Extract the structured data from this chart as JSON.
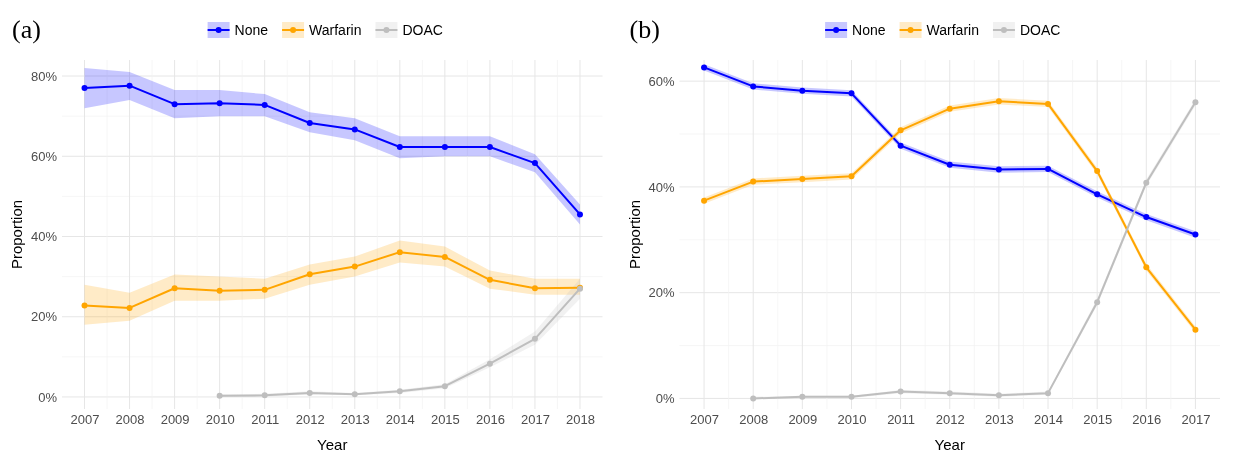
{
  "chart_data": [
    {
      "type": "line",
      "title": "(a)",
      "xlabel": "Year",
      "ylabel": "Proportion",
      "x": [
        2007,
        2008,
        2009,
        2010,
        2011,
        2012,
        2013,
        2014,
        2015,
        2016,
        2017,
        2018
      ],
      "xlim": [
        2006.5,
        2018.5
      ],
      "xticks": [
        2007,
        2008,
        2009,
        2010,
        2011,
        2012,
        2013,
        2014,
        2015,
        2016,
        2017,
        2018
      ],
      "ylim": [
        -3,
        84
      ],
      "yticks": [
        {
          "value": 0,
          "label": "0%"
        },
        {
          "value": 20,
          "label": "20%"
        },
        {
          "value": 40,
          "label": "40%"
        },
        {
          "value": 60,
          "label": "60%"
        },
        {
          "value": 80,
          "label": "80%"
        }
      ],
      "grid": true,
      "legend": "top",
      "marker": "circle",
      "line_style": "solid",
      "series": [
        {
          "name": "None",
          "color": "#0000ff",
          "values": [
            77,
            77.6,
            73,
            73.2,
            72.8,
            68.3,
            66.7,
            62.3,
            62.3,
            62.3,
            58.3,
            45.5
          ],
          "lower": [
            72,
            74,
            69.5,
            70,
            70,
            66,
            64,
            59.5,
            60,
            60,
            56,
            43
          ],
          "upper": [
            82,
            81,
            76.5,
            76.5,
            75.5,
            71,
            69.5,
            65,
            65,
            65,
            60.5,
            48
          ]
        },
        {
          "name": "Warfarin",
          "color": "#ffa500",
          "values": [
            22.8,
            22.2,
            27.1,
            26.5,
            26.7,
            30.6,
            32.5,
            36.1,
            34.9,
            29.2,
            27.1,
            27.2
          ],
          "lower": [
            18,
            19,
            24,
            24,
            24.5,
            28,
            30,
            33.5,
            32.5,
            27,
            25.5,
            25.5
          ],
          "upper": [
            28,
            26,
            30.5,
            30,
            29.5,
            33,
            35,
            39,
            37.5,
            31.5,
            29.5,
            29.5
          ]
        },
        {
          "name": "DOAC",
          "color": "#bebebe",
          "x": [
            2010,
            2011,
            2012,
            2013,
            2014,
            2015,
            2016,
            2017,
            2018
          ],
          "values": [
            0.3,
            0.4,
            1,
            0.7,
            1.4,
            2.7,
            8.3,
            14.5,
            27
          ],
          "lower": [
            0,
            0.1,
            0.6,
            0.4,
            1,
            2.2,
            7.4,
            13,
            24.5
          ],
          "upper": [
            0.6,
            0.8,
            1.4,
            1,
            1.8,
            3.2,
            9.4,
            16.3,
            29.5
          ]
        }
      ]
    },
    {
      "type": "line",
      "title": "(b)",
      "xlabel": "Year",
      "ylabel": "Proportion",
      "x": [
        2007,
        2008,
        2009,
        2010,
        2011,
        2012,
        2013,
        2014,
        2015,
        2016,
        2017
      ],
      "xlim": [
        2006.5,
        2017.5
      ],
      "xticks": [
        2007,
        2008,
        2009,
        2010,
        2011,
        2012,
        2013,
        2014,
        2015,
        2016,
        2017
      ],
      "ylim": [
        -2,
        64
      ],
      "yticks": [
        {
          "value": 0,
          "label": "0%"
        },
        {
          "value": 20,
          "label": "20%"
        },
        {
          "value": 40,
          "label": "40%"
        },
        {
          "value": 60,
          "label": "60%"
        }
      ],
      "grid": true,
      "legend": "top",
      "marker": "circle",
      "line_style": "solid",
      "series": [
        {
          "name": "None",
          "color": "#0000ff",
          "values": [
            62.6,
            59,
            58.2,
            57.7,
            47.8,
            44.2,
            43.3,
            43.4,
            38.6,
            34.3,
            31
          ],
          "lower": [
            62,
            58.4,
            57.6,
            57.1,
            47.2,
            43.6,
            42.7,
            42.8,
            38,
            33.7,
            30.4
          ],
          "upper": [
            63.2,
            59.6,
            58.8,
            58.3,
            48.4,
            44.8,
            43.9,
            44,
            39.2,
            34.9,
            31.6
          ]
        },
        {
          "name": "Warfarin",
          "color": "#ffa500",
          "values": [
            37.4,
            41,
            41.5,
            42,
            50.7,
            54.8,
            56.2,
            55.7,
            43,
            24.8,
            13
          ],
          "lower": [
            36.8,
            40.4,
            40.9,
            41.4,
            50.1,
            54.2,
            55.6,
            55.1,
            42.4,
            24.2,
            12.4
          ],
          "upper": [
            38,
            41.6,
            42.1,
            42.6,
            51.3,
            55.4,
            56.8,
            56.3,
            43.6,
            25.4,
            13.6
          ]
        },
        {
          "name": "DOAC",
          "color": "#bebebe",
          "x": [
            2008,
            2009,
            2010,
            2011,
            2012,
            2013,
            2014,
            2015,
            2016,
            2017
          ],
          "values": [
            0,
            0.3,
            0.3,
            1.3,
            1,
            0.6,
            1,
            18.2,
            40.8,
            56
          ],
          "lower": [
            0,
            0.1,
            0.1,
            1,
            0.7,
            0.3,
            0.7,
            17.6,
            40.2,
            55.4
          ],
          "upper": [
            0.3,
            0.5,
            0.5,
            1.6,
            1.3,
            0.9,
            1.3,
            18.8,
            41.4,
            56.6
          ]
        }
      ]
    }
  ]
}
